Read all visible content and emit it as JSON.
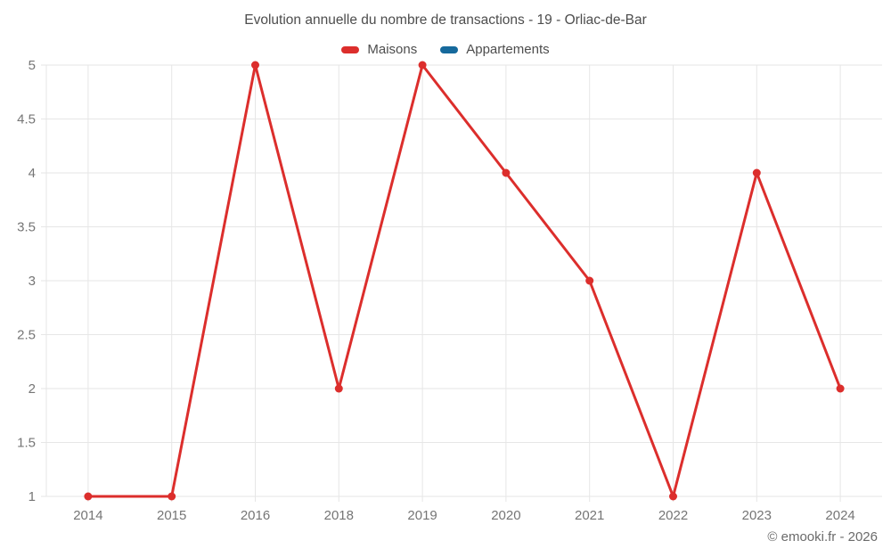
{
  "chart_data": {
    "type": "line",
    "title": "Evolution annuelle du nombre de transactions - 19 - Orliac-de-Bar",
    "categories": [
      "2014",
      "2015",
      "2016",
      "2018",
      "2019",
      "2020",
      "2021",
      "2022",
      "2023",
      "2024"
    ],
    "series": [
      {
        "name": "Maisons",
        "color": "#dc2e2c",
        "values": [
          1,
          1,
          5,
          2,
          5,
          4,
          3,
          1,
          4,
          2
        ]
      },
      {
        "name": "Appartements",
        "color": "#16699c",
        "values": []
      }
    ],
    "ylim": [
      1,
      5
    ],
    "ytick_step": 0.5,
    "grid": true,
    "grid_color": "#e6e6e6",
    "axis_text_color": "#757575",
    "title_color": "#4d4d4d",
    "legend_position": "top",
    "xlabel": "",
    "ylabel": ""
  },
  "footer": {
    "copyright": "© emooki.fr - 2026"
  }
}
